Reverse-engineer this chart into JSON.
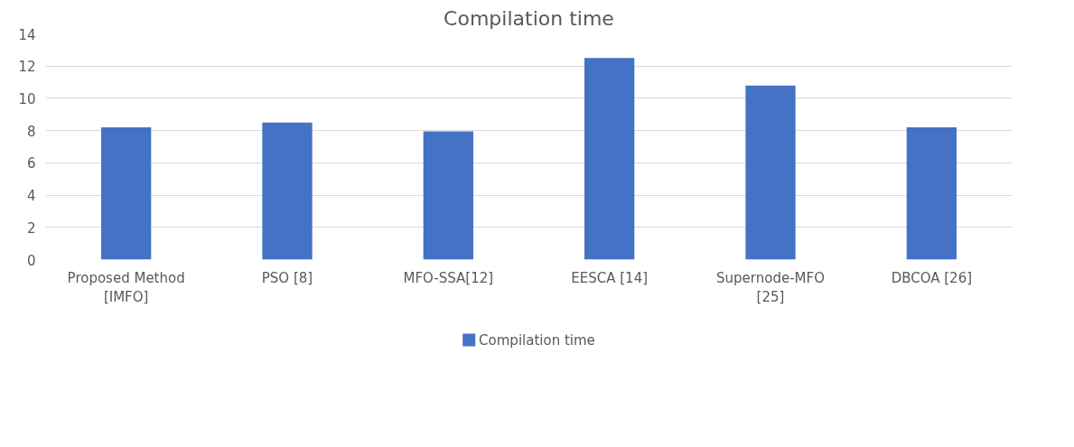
{
  "chart_data": {
    "type": "bar",
    "title": "Compilation time",
    "categories": [
      "Proposed Method [IMFO]",
      "PSO [8]",
      "MFO-SSA[12]",
      "EESCA [14]",
      "Supernode-MFO [25]",
      "DBCOA [26]"
    ],
    "series": [
      {
        "name": "Compilation time",
        "color": "#4472c4",
        "values": [
          8.2,
          8.5,
          7.95,
          12.5,
          10.8,
          8.2
        ]
      }
    ],
    "ylim": [
      0,
      14
    ],
    "yticks": [
      0,
      2,
      4,
      6,
      8,
      10,
      12,
      14
    ],
    "grid": "y",
    "legend": "bottom"
  }
}
